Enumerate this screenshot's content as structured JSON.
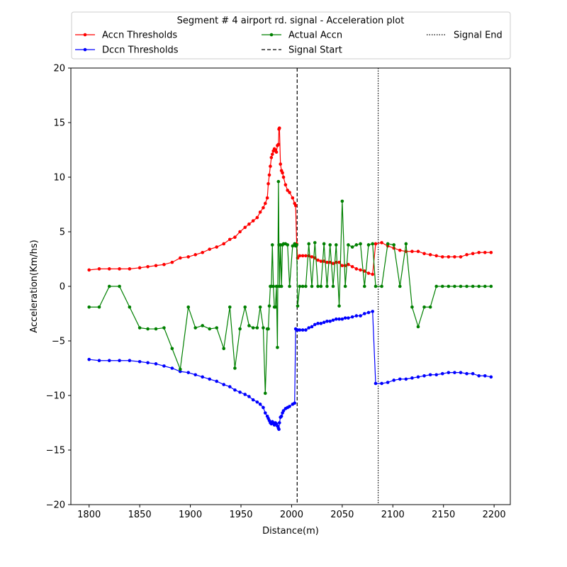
{
  "chart_data": {
    "type": "line",
    "legend_title": "Segment # 4 airport rd. signal - Acceleration plot",
    "legend_placement": "top-center",
    "xlabel": "Distance(m)",
    "ylabel": "Acceleration(Km/hs)",
    "xlim": [
      1782,
      2216
    ],
    "ylim": [
      -20,
      20
    ],
    "x_ticks": [
      1800,
      1850,
      1900,
      1950,
      2000,
      2050,
      2100,
      2150,
      2200
    ],
    "y_ticks": [
      -20,
      -15,
      -10,
      -5,
      0,
      5,
      10,
      15,
      20
    ],
    "x_tick_labels": [
      "1800",
      "1850",
      "1900",
      "1950",
      "2000",
      "2050",
      "2100",
      "2150",
      "2200"
    ],
    "y_tick_labels": [
      "−20",
      "−15",
      "−10",
      "−5",
      "0",
      "5",
      "10",
      "15",
      "20"
    ],
    "grid": false,
    "vlines": [
      {
        "name": "Signal Start",
        "x": 2005.5,
        "style": "dashed",
        "color": "#000000"
      },
      {
        "name": "Signal End",
        "x": 2085.5,
        "style": "dotted",
        "color": "#000000"
      }
    ],
    "series": [
      {
        "name": "Accn Thresholds",
        "color": "#ff0000",
        "x": [
          1800,
          1810,
          1820,
          1830,
          1840,
          1850,
          1858,
          1866,
          1874,
          1882,
          1890,
          1898,
          1905,
          1912,
          1919,
          1926,
          1933,
          1939,
          1944,
          1949,
          1954,
          1958,
          1962,
          1966,
          1969,
          1972,
          1974,
          1976,
          1977,
          1978,
          1979,
          1980,
          1981,
          1982,
          1983,
          1984,
          1985,
          1986,
          1987,
          1987.5,
          1988,
          1989,
          1990,
          1991,
          1992,
          1994,
          1996,
          1998,
          2001,
          2003,
          2004,
          2005,
          2006,
          2008,
          2011,
          2014,
          2017,
          2020,
          2023,
          2026,
          2029,
          2032,
          2035,
          2038,
          2041,
          2044,
          2047,
          2050,
          2053,
          2056,
          2060,
          2064,
          2068,
          2072,
          2076,
          2080,
          2083,
          2089,
          2095,
          2101,
          2107,
          2113,
          2119,
          2125,
          2131,
          2137,
          2143,
          2149,
          2155,
          2161,
          2167,
          2173,
          2179,
          2185,
          2191,
          2197
        ],
        "y": [
          1.5,
          1.6,
          1.6,
          1.6,
          1.6,
          1.7,
          1.8,
          1.9,
          2.0,
          2.2,
          2.6,
          2.7,
          2.9,
          3.1,
          3.4,
          3.6,
          3.9,
          4.3,
          4.5,
          5.0,
          5.4,
          5.7,
          6.0,
          6.3,
          6.8,
          7.2,
          7.6,
          8.1,
          9.4,
          10.2,
          11.0,
          11.8,
          12.1,
          12.4,
          12.6,
          12.5,
          12.3,
          12.9,
          13.0,
          14.4,
          14.5,
          11.2,
          10.6,
          10.4,
          10.0,
          9.3,
          8.8,
          8.6,
          8.1,
          7.6,
          7.4,
          3.9,
          2.6,
          2.8,
          2.8,
          2.8,
          2.8,
          2.7,
          2.6,
          2.4,
          2.3,
          2.3,
          2.2,
          2.2,
          2.1,
          2.2,
          2.2,
          1.9,
          1.9,
          2.0,
          1.8,
          1.6,
          1.5,
          1.4,
          1.2,
          1.1,
          3.9,
          4.0,
          3.7,
          3.5,
          3.3,
          3.2,
          3.2,
          3.2,
          3.0,
          2.9,
          2.8,
          2.7,
          2.7,
          2.7,
          2.7,
          2.9,
          3.0,
          3.1,
          3.1,
          3.1
        ]
      },
      {
        "name": "Dccn Thresholds",
        "color": "#0000ff",
        "x": [
          1800,
          1810,
          1820,
          1830,
          1840,
          1850,
          1858,
          1866,
          1874,
          1882,
          1890,
          1898,
          1905,
          1912,
          1919,
          1926,
          1933,
          1939,
          1944,
          1949,
          1954,
          1958,
          1962,
          1966,
          1969,
          1972,
          1974,
          1976,
          1977,
          1978,
          1979,
          1980,
          1981,
          1982,
          1983,
          1984,
          1985,
          1986,
          1987,
          1987.5,
          1988,
          1989,
          1990,
          1991,
          1992,
          1994,
          1996,
          1998,
          2001,
          2003,
          2004,
          2005,
          2006,
          2008,
          2011,
          2014,
          2017,
          2020,
          2023,
          2026,
          2029,
          2032,
          2035,
          2038,
          2041,
          2044,
          2047,
          2050,
          2053,
          2056,
          2060,
          2064,
          2068,
          2072,
          2076,
          2080,
          2083,
          2089,
          2095,
          2101,
          2107,
          2113,
          2119,
          2125,
          2131,
          2137,
          2143,
          2149,
          2155,
          2161,
          2167,
          2173,
          2179,
          2185,
          2191,
          2197
        ],
        "y": [
          -6.7,
          -6.8,
          -6.8,
          -6.8,
          -6.8,
          -6.9,
          -7.0,
          -7.1,
          -7.3,
          -7.5,
          -7.8,
          -7.9,
          -8.1,
          -8.3,
          -8.5,
          -8.7,
          -9.0,
          -9.2,
          -9.5,
          -9.7,
          -9.9,
          -10.1,
          -10.4,
          -10.6,
          -10.8,
          -11.1,
          -11.6,
          -11.9,
          -12.1,
          -12.3,
          -12.5,
          -12.6,
          -12.4,
          -12.5,
          -12.7,
          -12.5,
          -12.6,
          -12.8,
          -13.0,
          -13.1,
          -12.5,
          -12.0,
          -11.9,
          -11.6,
          -11.4,
          -11.2,
          -11.1,
          -11.0,
          -10.8,
          -10.7,
          -3.9,
          -4.0,
          -4.0,
          -4.0,
          -4.0,
          -4.0,
          -3.8,
          -3.7,
          -3.5,
          -3.4,
          -3.4,
          -3.3,
          -3.2,
          -3.2,
          -3.1,
          -3.0,
          -3.0,
          -3.0,
          -2.9,
          -2.9,
          -2.8,
          -2.7,
          -2.7,
          -2.5,
          -2.4,
          -2.3,
          -8.9,
          -8.9,
          -8.8,
          -8.6,
          -8.5,
          -8.5,
          -8.4,
          -8.3,
          -8.2,
          -8.1,
          -8.1,
          -8.0,
          -7.9,
          -7.9,
          -7.9,
          -8.0,
          -8.0,
          -8.2,
          -8.2,
          -8.3
        ]
      },
      {
        "name": "Actual Accn",
        "color": "#008000",
        "x": [
          1800,
          1810,
          1820,
          1830,
          1840,
          1850,
          1858,
          1866,
          1874,
          1882,
          1890,
          1898,
          1905,
          1912,
          1919,
          1926,
          1933,
          1939,
          1944,
          1949,
          1954,
          1958,
          1962,
          1966,
          1969,
          1972,
          1974,
          1976,
          1977,
          1978,
          1979,
          1980,
          1981,
          1982,
          1983,
          1984,
          1985,
          1986,
          1987,
          1987.5,
          1988,
          1989,
          1990,
          1991,
          1992,
          1994,
          1996,
          1998,
          2001,
          2003,
          2004,
          2005,
          2006,
          2008,
          2011,
          2014,
          2017,
          2020,
          2023,
          2026,
          2029,
          2032,
          2035,
          2038,
          2041,
          2044,
          2047,
          2050,
          2053,
          2056,
          2060,
          2064,
          2068,
          2072,
          2076,
          2080,
          2083,
          2089,
          2095,
          2101,
          2107,
          2113,
          2119,
          2125,
          2131,
          2137,
          2143,
          2149,
          2155,
          2161,
          2167,
          2173,
          2179,
          2185,
          2191,
          2197
        ],
        "y": [
          -1.9,
          -1.9,
          0,
          0,
          -1.9,
          -3.8,
          -3.9,
          -3.9,
          -3.8,
          -5.7,
          -7.6,
          -1.9,
          -3.8,
          -3.6,
          -3.9,
          -3.8,
          -5.7,
          -1.9,
          -7.5,
          -3.9,
          -1.9,
          -3.6,
          -3.8,
          -3.8,
          -1.9,
          -3.8,
          -9.8,
          -3.9,
          -3.9,
          -1.8,
          0,
          0,
          3.8,
          0,
          -1.9,
          -1.9,
          0,
          -5.6,
          9.6,
          3.8,
          0,
          3.8,
          0,
          3.8,
          3.9,
          3.9,
          3.8,
          0,
          3.7,
          3.9,
          3.7,
          3.8,
          -1.8,
          0,
          0,
          0,
          3.9,
          0,
          4.0,
          0,
          0,
          3.9,
          0,
          3.8,
          0,
          3.8,
          -1.8,
          7.8,
          0,
          3.8,
          3.6,
          3.8,
          3.9,
          0,
          3.8,
          3.9,
          0,
          0,
          3.9,
          3.8,
          0,
          3.9,
          -1.9,
          -3.7,
          -1.9,
          -1.9,
          0,
          0,
          0,
          0,
          0,
          0,
          0,
          0,
          0,
          0
        ]
      }
    ]
  }
}
